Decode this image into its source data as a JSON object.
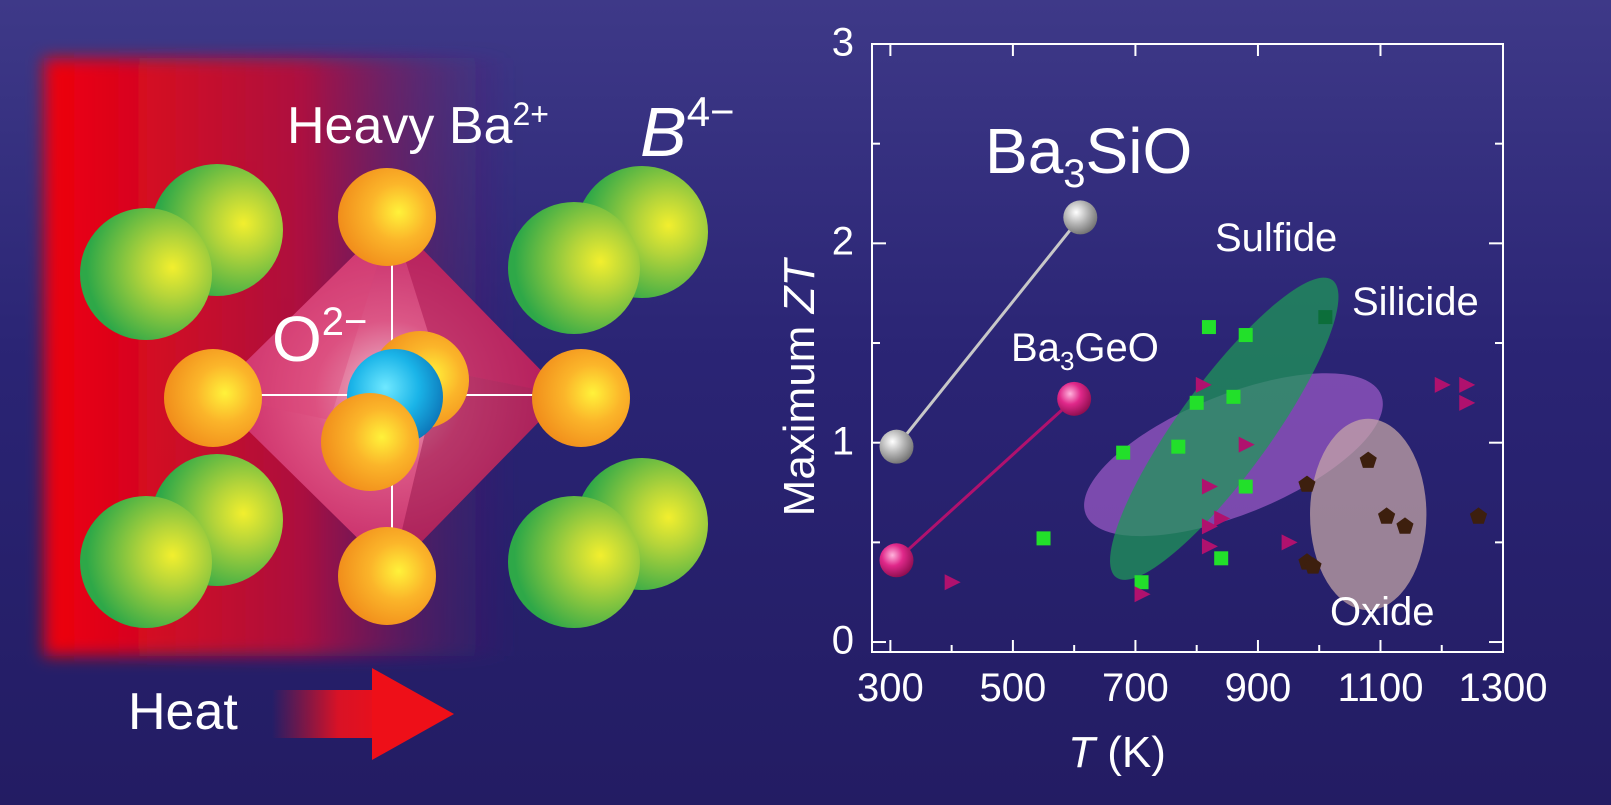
{
  "illustration": {
    "label_heavy": "Heavy Ba",
    "label_heavy_charge": "2+",
    "label_b": "B",
    "label_b_charge": "4−",
    "label_o": "O",
    "label_o_charge": "2−",
    "label_heat": "Heat",
    "colors": {
      "heat": "#e8000e",
      "anion": "#3db34a",
      "barium": "#f7a21c",
      "oxygen": "#1aa3d9",
      "octahedron": "#c8195c"
    }
  },
  "chart_data": {
    "type": "scatter",
    "ylabel_prefix": "Maximum ",
    "ylabel_italic": "ZT",
    "xlabel_italic": "T",
    "xlabel_suffix": " (K)",
    "xlim": [
      270,
      1300
    ],
    "ylim": [
      -0.05,
      3
    ],
    "xticks": [
      300,
      500,
      700,
      900,
      1100,
      1300
    ],
    "yticks": [
      0,
      1,
      2,
      3
    ],
    "regions": [
      {
        "name": "Silicide",
        "color": "#9b5ac6",
        "cx": 860,
        "cy": 0.94,
        "rx": 520,
        "ry": 0.3,
        "angle": -22
      },
      {
        "name": "Sulfide",
        "color": "#1f9a57",
        "cx": 845,
        "cy": 1.07,
        "rx": 600,
        "ry": 0.23,
        "angle": -54
      },
      {
        "name": "Oxide",
        "color": "#c8a8a8",
        "cx": 1080,
        "cy": 0.64,
        "rx": 190,
        "ry": 0.48,
        "angle": 0
      }
    ],
    "region_labels": [
      "Sulfide",
      "Silicide",
      "Oxide"
    ],
    "series": [
      {
        "name": "Sulfide",
        "marker": "square",
        "color": "#22e02a",
        "x": [
          550,
          680,
          710,
          770,
          800,
          820,
          840,
          860,
          880,
          880,
          1010
        ],
        "y": [
          0.52,
          0.95,
          0.3,
          0.98,
          1.2,
          1.58,
          0.42,
          1.23,
          1.54,
          0.78,
          1.63
        ]
      },
      {
        "name": "Silicide",
        "marker": "triangle",
        "color": "#b0116e",
        "x": [
          400,
          710,
          810,
          820,
          820,
          820,
          840,
          880,
          950,
          1200,
          1240,
          1240
        ],
        "y": [
          0.3,
          0.24,
          1.29,
          0.78,
          0.58,
          0.48,
          0.62,
          0.99,
          0.5,
          1.29,
          1.29,
          1.2
        ]
      },
      {
        "name": "Oxide",
        "marker": "pentagon",
        "color": "#3d1f0e",
        "x": [
          980,
          980,
          990,
          1080,
          1110,
          1140,
          1260
        ],
        "y": [
          0.79,
          0.4,
          0.38,
          0.91,
          0.63,
          0.58,
          0.63
        ]
      }
    ],
    "highlights": [
      {
        "name": "Ba3SiO",
        "label_main": "Ba",
        "label_sub": "3",
        "label_rest": "SiO",
        "color": "#9a9a9a",
        "points": [
          [
            310,
            0.98
          ],
          [
            610,
            2.13
          ]
        ]
      },
      {
        "name": "Ba3GeO",
        "label_main": "Ba",
        "label_sub": "3",
        "label_rest": "GeO",
        "color": "#d31a7a",
        "points": [
          [
            310,
            0.41
          ],
          [
            600,
            1.22
          ]
        ]
      }
    ]
  }
}
